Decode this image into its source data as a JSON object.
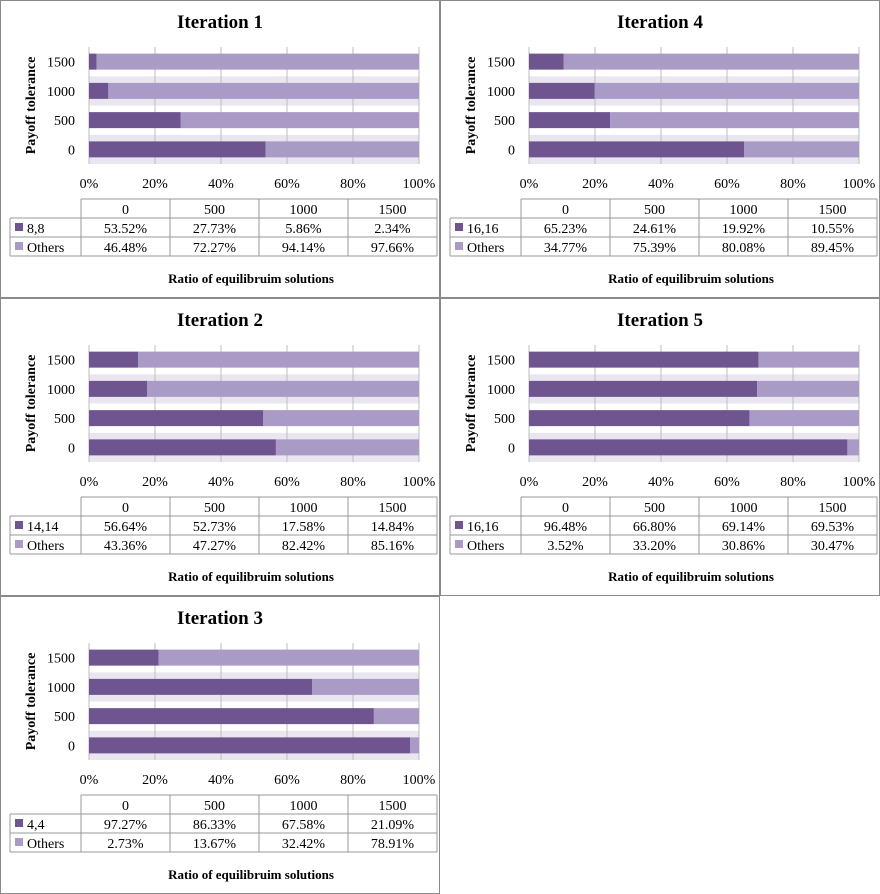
{
  "colors": {
    "primary": "#6f5590",
    "others": "#a99ac6",
    "band": "#eae6f0",
    "grid": "#bdbdbd"
  },
  "chart_data": [
    {
      "type": "bar",
      "stacked": true,
      "orientation": "horizontal",
      "title": "Iteration 1",
      "ylabel": "Payoff tolerance",
      "xlabel": "Ratio of equilibruim solutions",
      "categories": [
        "0",
        "500",
        "1000",
        "1500"
      ],
      "xticks": [
        "0%",
        "20%",
        "40%",
        "60%",
        "80%",
        "100%"
      ],
      "xlim": [
        0,
        100
      ],
      "series": [
        {
          "name": "8,8",
          "values": [
            53.52,
            27.73,
            5.86,
            2.34
          ],
          "labels": [
            "53.52%",
            "27.73%",
            "5.86%",
            "2.34%"
          ]
        },
        {
          "name": "Others",
          "values": [
            46.48,
            72.27,
            94.14,
            97.66
          ],
          "labels": [
            "46.48%",
            "72.27%",
            "94.14%",
            "97.66%"
          ]
        }
      ]
    },
    {
      "type": "bar",
      "stacked": true,
      "orientation": "horizontal",
      "title": "Iteration 4",
      "ylabel": "Payoff tolerance",
      "xlabel": "Ratio of equilibruim solutions",
      "categories": [
        "0",
        "500",
        "1000",
        "1500"
      ],
      "xticks": [
        "0%",
        "20%",
        "40%",
        "60%",
        "80%",
        "100%"
      ],
      "xlim": [
        0,
        100
      ],
      "series": [
        {
          "name": "16,16",
          "values": [
            65.23,
            24.61,
            19.92,
            10.55
          ],
          "labels": [
            "65.23%",
            "24.61%",
            "19.92%",
            "10.55%"
          ]
        },
        {
          "name": "Others",
          "values": [
            34.77,
            75.39,
            80.08,
            89.45
          ],
          "labels": [
            "34.77%",
            "75.39%",
            "80.08%",
            "89.45%"
          ]
        }
      ]
    },
    {
      "type": "bar",
      "stacked": true,
      "orientation": "horizontal",
      "title": "Iteration 2",
      "ylabel": "Payoff tolerance",
      "xlabel": "Ratio of equilibruim solutions",
      "categories": [
        "0",
        "500",
        "1000",
        "1500"
      ],
      "xticks": [
        "0%",
        "20%",
        "40%",
        "60%",
        "80%",
        "100%"
      ],
      "xlim": [
        0,
        100
      ],
      "series": [
        {
          "name": "14,14",
          "values": [
            56.64,
            52.73,
            17.58,
            14.84
          ],
          "labels": [
            "56.64%",
            "52.73%",
            "17.58%",
            "14.84%"
          ]
        },
        {
          "name": "Others",
          "values": [
            43.36,
            47.27,
            82.42,
            85.16
          ],
          "labels": [
            "43.36%",
            "47.27%",
            "82.42%",
            "85.16%"
          ]
        }
      ]
    },
    {
      "type": "bar",
      "stacked": true,
      "orientation": "horizontal",
      "title": "Iteration 5",
      "ylabel": "Payoff tolerance",
      "xlabel": "Ratio of equilibruim solutions",
      "categories": [
        "0",
        "500",
        "1000",
        "1500"
      ],
      "xticks": [
        "0%",
        "20%",
        "40%",
        "60%",
        "80%",
        "100%"
      ],
      "xlim": [
        0,
        100
      ],
      "series": [
        {
          "name": "16,16",
          "values": [
            96.48,
            66.8,
            69.14,
            69.53
          ],
          "labels": [
            "96.48%",
            "66.80%",
            "69.14%",
            "69.53%"
          ]
        },
        {
          "name": "Others",
          "values": [
            3.52,
            33.2,
            30.86,
            30.47
          ],
          "labels": [
            "3.52%",
            "33.20%",
            "30.86%",
            "30.47%"
          ]
        }
      ]
    },
    {
      "type": "bar",
      "stacked": true,
      "orientation": "horizontal",
      "title": "Iteration 3",
      "ylabel": "Payoff tolerance",
      "xlabel": "Ratio of equilibruim solutions",
      "categories": [
        "0",
        "500",
        "1000",
        "1500"
      ],
      "xticks": [
        "0%",
        "20%",
        "40%",
        "60%",
        "80%",
        "100%"
      ],
      "xlim": [
        0,
        100
      ],
      "series": [
        {
          "name": "4,4",
          "values": [
            97.27,
            86.33,
            67.58,
            21.09
          ],
          "labels": [
            "97.27%",
            "86.33%",
            "67.58%",
            "21.09%"
          ]
        },
        {
          "name": "Others",
          "values": [
            2.73,
            13.67,
            32.42,
            78.91
          ],
          "labels": [
            "2.73%",
            "13.67%",
            "32.42%",
            "78.91%"
          ]
        }
      ]
    }
  ]
}
